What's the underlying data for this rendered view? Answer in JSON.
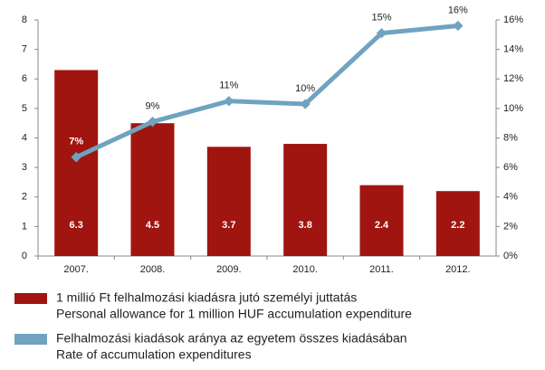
{
  "chart_data": {
    "type": "bar_line",
    "categories": [
      "2007.",
      "2008.",
      "2009.",
      "2010.",
      "2011.",
      "2012."
    ],
    "series": [
      {
        "name": [
          "1 millió Ft felhalmozási kiadásra jutó személyi juttatás",
          "Personal allowance for 1 million HUF accumulation expenditure"
        ],
        "color": "#a0150f",
        "type": "bar",
        "values": [
          6.3,
          4.5,
          3.7,
          3.8,
          2.4,
          2.2
        ]
      },
      {
        "name": [
          "Felhalmozási kiadások aránya az egyetem összes kiadásában",
          "Rate of accumulation expenditures"
        ],
        "color": "#6fa3c0",
        "type": "line",
        "axis": "y2",
        "values": [
          6.7,
          9.1,
          10.5,
          10.3,
          15.1,
          15.6
        ],
        "value_labels": [
          "7%",
          "9%",
          "11%",
          "10%",
          "15%",
          "16%"
        ]
      }
    ],
    "ylim": [
      0,
      8
    ],
    "yticks": [
      0,
      1,
      2,
      3,
      4,
      5,
      6,
      7,
      8
    ],
    "y2lim": [
      0,
      16
    ],
    "y2ticks": [
      {
        "value": 0,
        "label": "0%"
      },
      {
        "value": 2,
        "label": "2%"
      },
      {
        "value": 4,
        "label": "4%"
      },
      {
        "value": 6,
        "label": "6%"
      },
      {
        "value": 8,
        "label": "8%"
      },
      {
        "value": 10,
        "label": "10%"
      },
      {
        "value": 12,
        "label": "12%"
      },
      {
        "value": 14,
        "label": "14%"
      },
      {
        "value": 16,
        "label": "16%"
      }
    ],
    "legend": "bottom"
  }
}
